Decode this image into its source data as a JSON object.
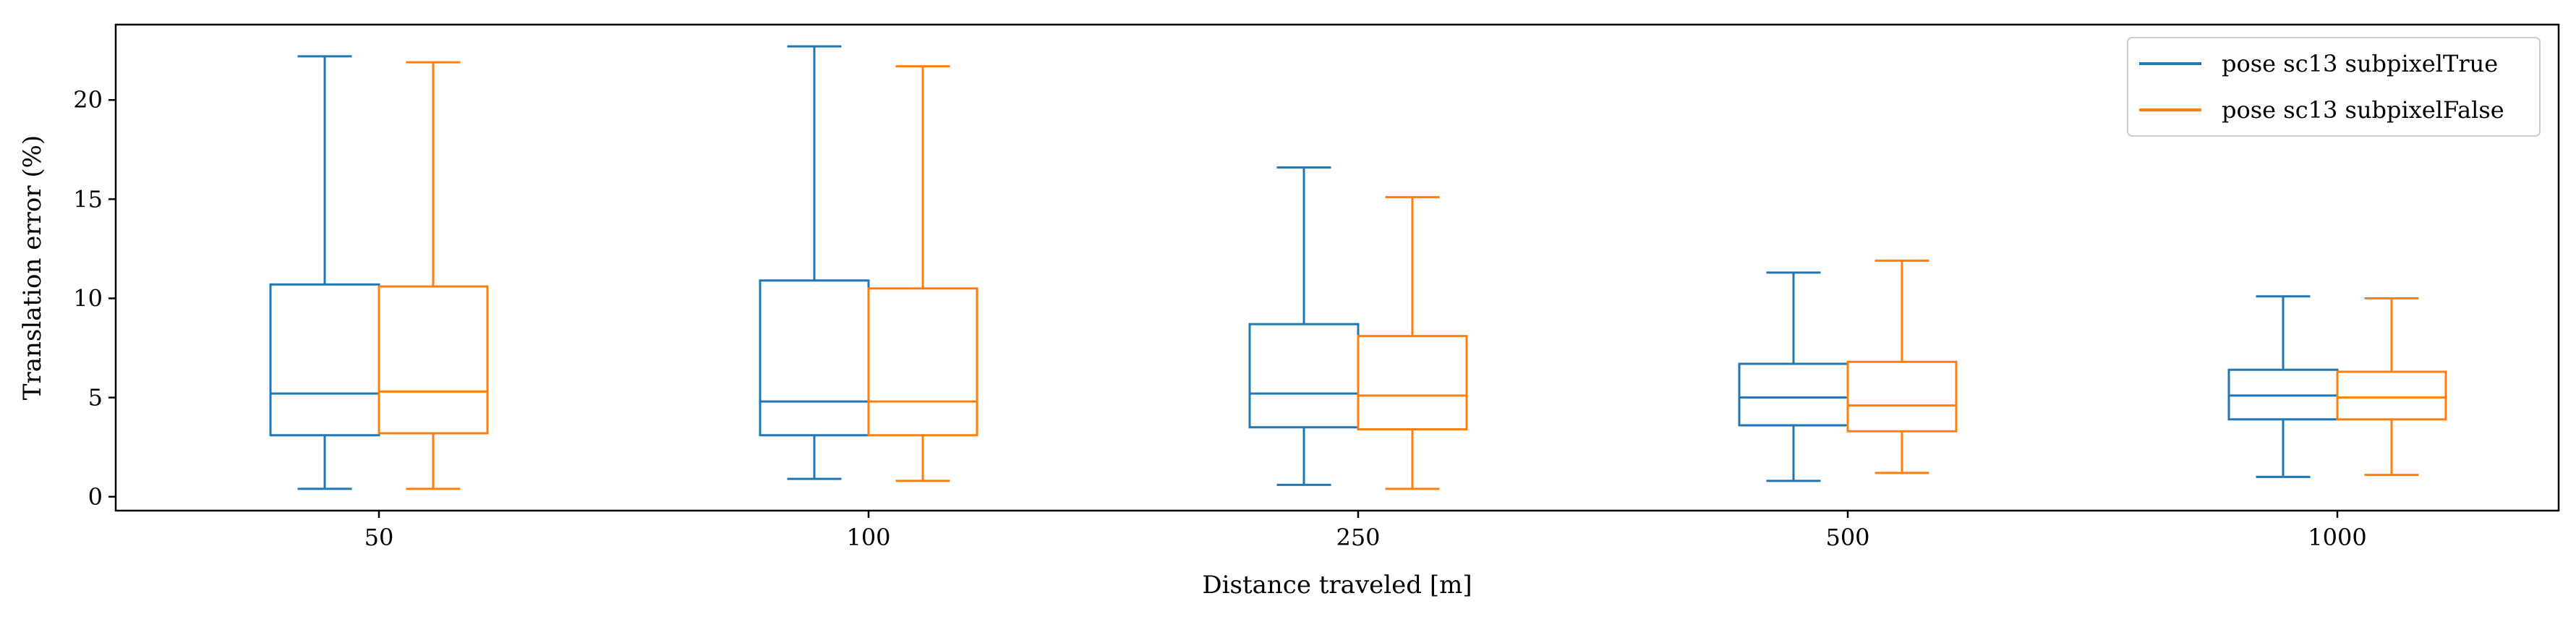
{
  "chart_data": {
    "type": "boxplot",
    "title": "",
    "xlabel": "Distance traveled [m]",
    "ylabel": "Translation error (%)",
    "ylim": [
      -0.7,
      23.8
    ],
    "yticks": [
      0,
      5,
      10,
      15,
      20
    ],
    "yticks_labels": [
      "0",
      "5",
      "10",
      "15",
      "20"
    ],
    "categories": [
      "50",
      "100",
      "250",
      "500",
      "1000"
    ],
    "grid": false,
    "legend_position": "top-right",
    "series": [
      {
        "name": "pose sc13 subpixelTrue",
        "color": "#1f77b4",
        "boxes": [
          {
            "whislo": 0.4,
            "q1": 3.1,
            "med": 5.2,
            "q3": 10.7,
            "whishi": 22.2
          },
          {
            "whislo": 0.9,
            "q1": 3.1,
            "med": 4.8,
            "q3": 10.9,
            "whishi": 22.7
          },
          {
            "whislo": 0.6,
            "q1": 3.5,
            "med": 5.2,
            "q3": 8.7,
            "whishi": 16.6
          },
          {
            "whislo": 0.8,
            "q1": 3.6,
            "med": 5.0,
            "q3": 6.7,
            "whishi": 11.3
          },
          {
            "whislo": 1.0,
            "q1": 3.9,
            "med": 5.1,
            "q3": 6.4,
            "whishi": 10.1
          }
        ]
      },
      {
        "name": "pose sc13 subpixelFalse",
        "color": "#ff7f0e",
        "boxes": [
          {
            "whislo": 0.4,
            "q1": 3.2,
            "med": 5.3,
            "q3": 10.6,
            "whishi": 21.9
          },
          {
            "whislo": 0.8,
            "q1": 3.1,
            "med": 4.8,
            "q3": 10.5,
            "whishi": 21.7
          },
          {
            "whislo": 0.4,
            "q1": 3.4,
            "med": 5.1,
            "q3": 8.1,
            "whishi": 15.1
          },
          {
            "whislo": 1.2,
            "q1": 3.3,
            "med": 4.6,
            "q3": 6.8,
            "whishi": 11.9
          },
          {
            "whislo": 1.1,
            "q1": 3.9,
            "med": 5.0,
            "q3": 6.3,
            "whishi": 10.0
          }
        ]
      }
    ]
  }
}
